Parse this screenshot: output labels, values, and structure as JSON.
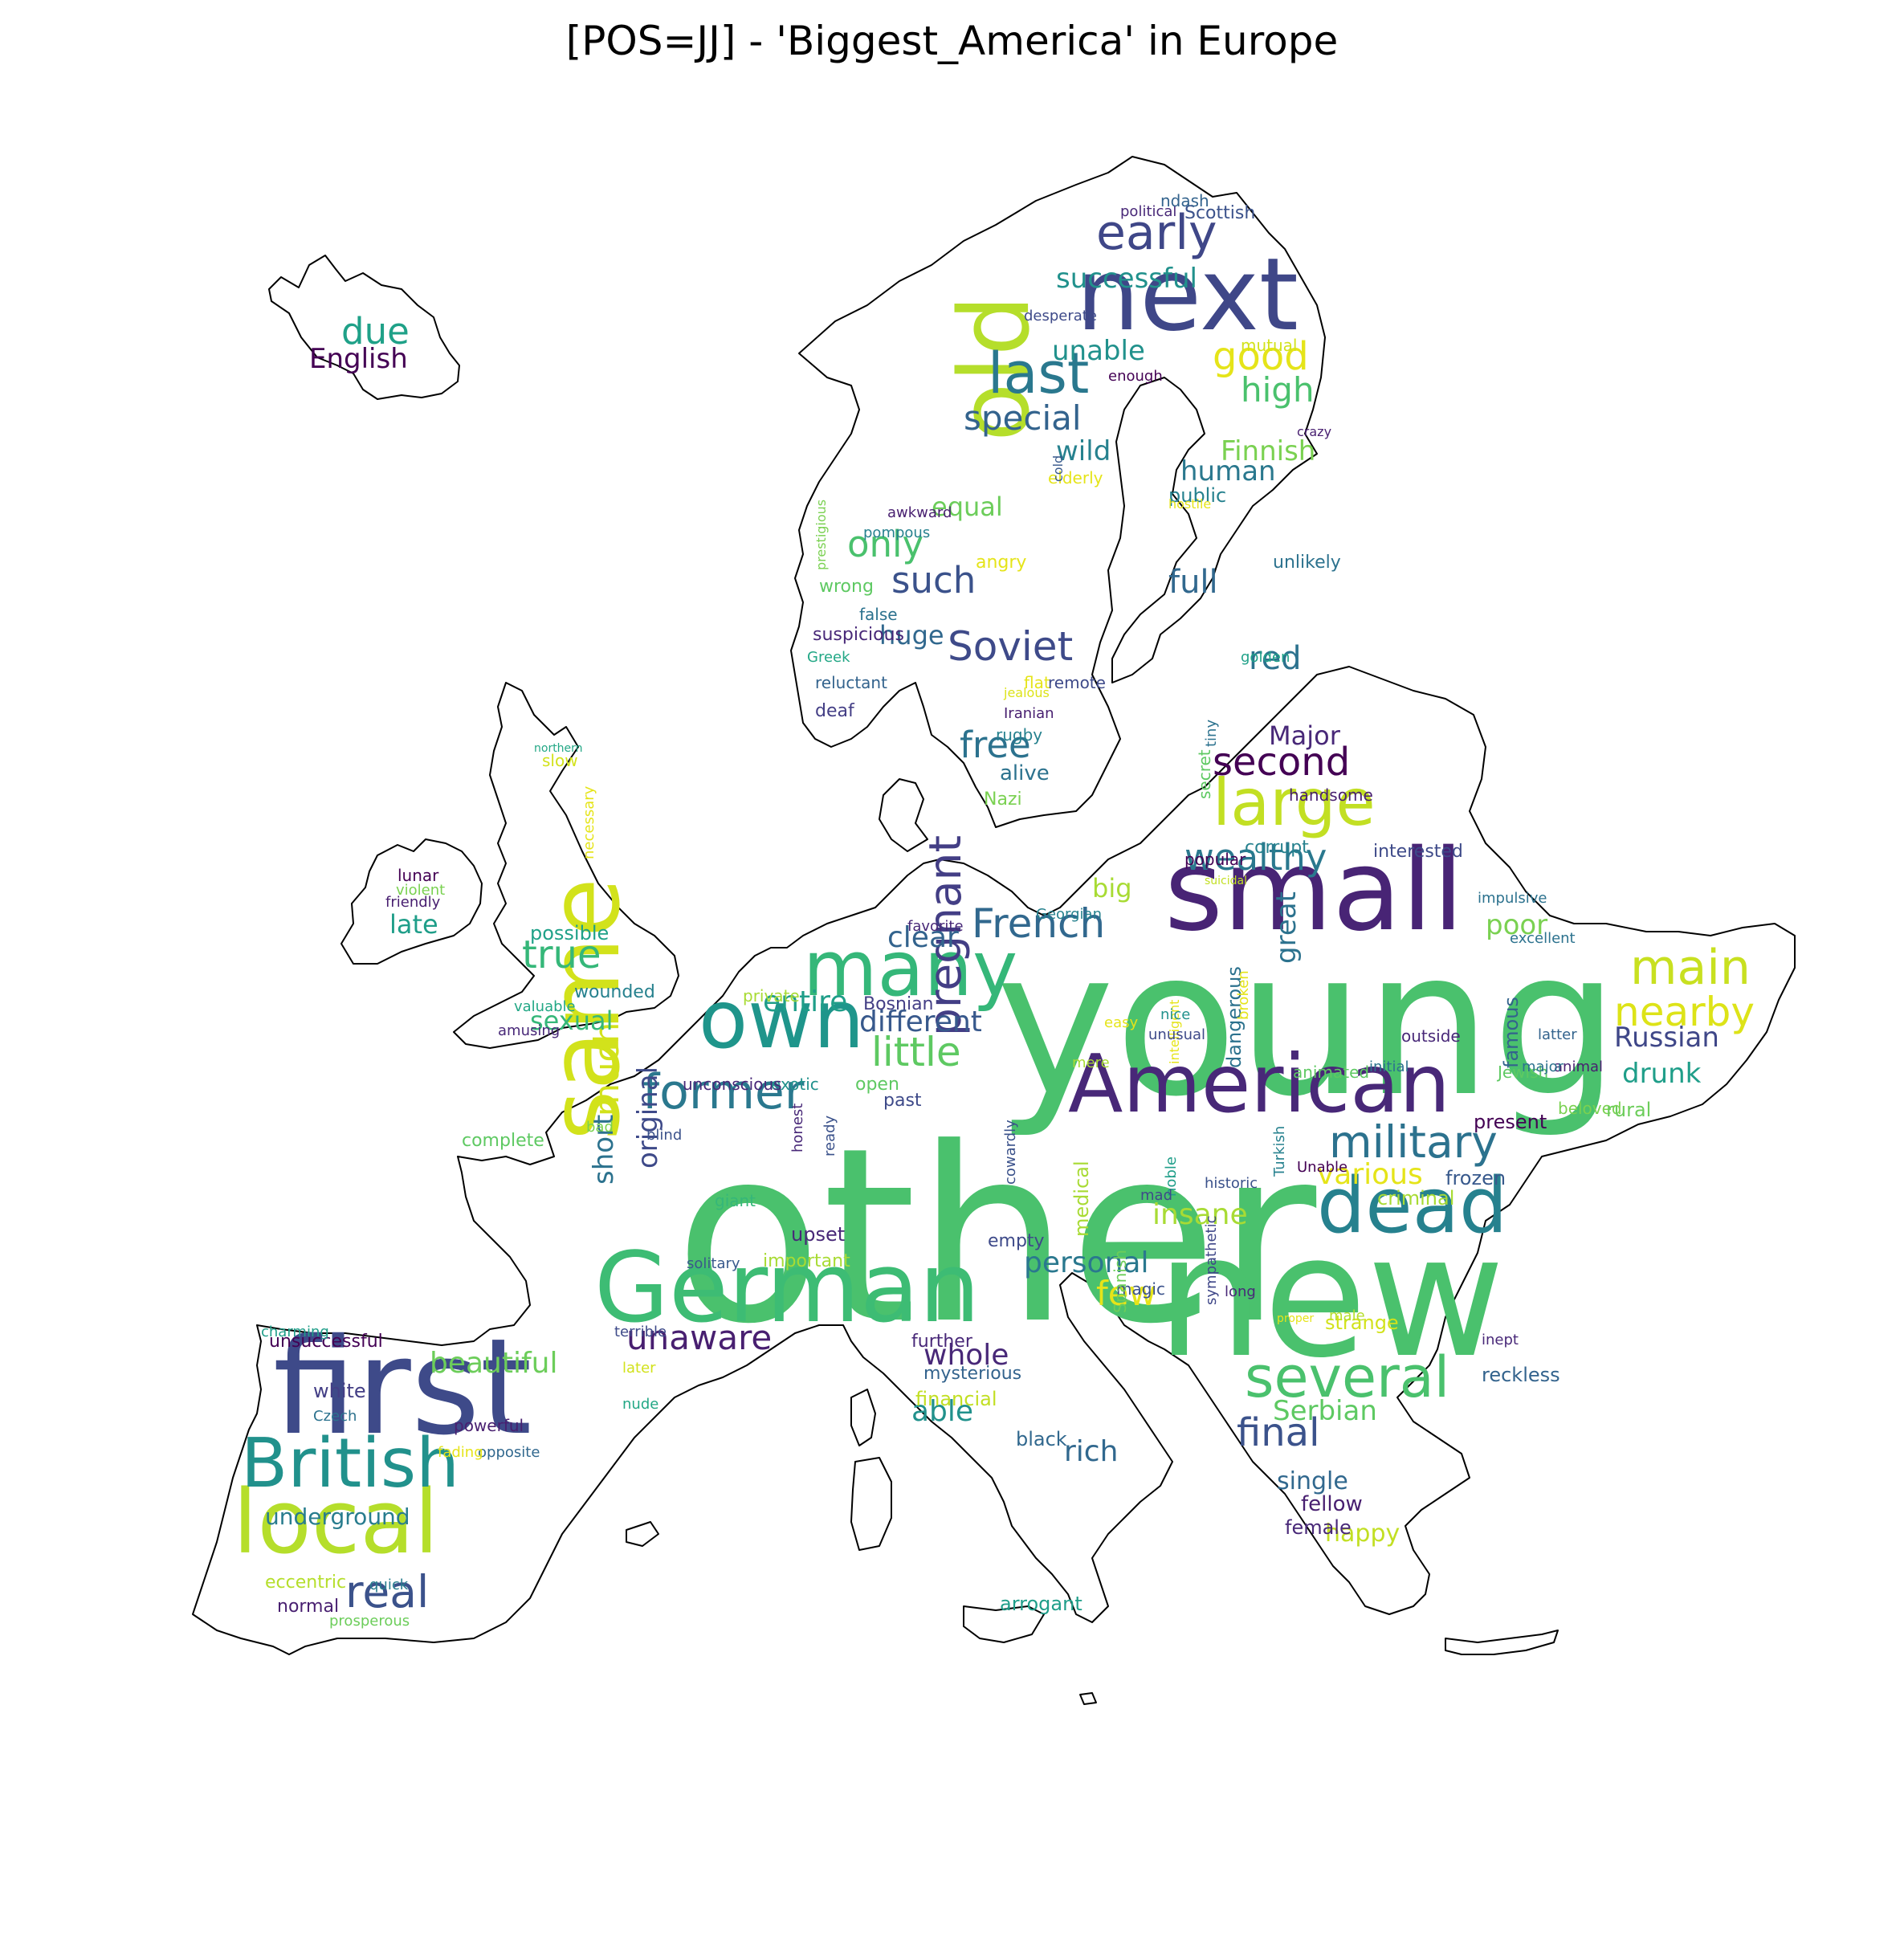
{
  "title": "[POS=JJ] - 'Biggest_America' in Europe",
  "words": [
    {
      "text": "other",
      "size": 300,
      "color": "#4ac16d"
    },
    {
      "text": "young",
      "size": 250,
      "color": "#4ac16d"
    },
    {
      "text": "new",
      "size": 210,
      "color": "#4ac16d"
    },
    {
      "text": "first",
      "size": 165,
      "color": "#3e4a89"
    },
    {
      "text": "small",
      "size": 140,
      "color": "#482475"
    },
    {
      "text": "next",
      "size": 125,
      "color": "#3f4788"
    },
    {
      "text": "same",
      "size": 120,
      "color": "#d2e21b",
      "rotate": true
    },
    {
      "text": "German",
      "size": 120,
      "color": "#3dbc74"
    },
    {
      "text": "old",
      "size": 120,
      "color": "#b5de2b",
      "rotate": true
    },
    {
      "text": "local",
      "size": 110,
      "color": "#b5de2b"
    },
    {
      "text": "American",
      "size": 100,
      "color": "#482878"
    },
    {
      "text": "dead",
      "size": 95,
      "color": "#26818e"
    },
    {
      "text": "own",
      "size": 100,
      "color": "#1f958b"
    },
    {
      "text": "many",
      "size": 95,
      "color": "#35b779"
    },
    {
      "text": "British",
      "size": 85,
      "color": "#21918c"
    },
    {
      "text": "large",
      "size": 80,
      "color": "#c2df23"
    },
    {
      "text": "several",
      "size": 70,
      "color": "#4ac16d"
    },
    {
      "text": "last",
      "size": 70,
      "color": "#2a788e"
    },
    {
      "text": "main",
      "size": 60,
      "color": "#c8e020"
    },
    {
      "text": "early",
      "size": 60,
      "color": "#3f4788"
    },
    {
      "text": "former",
      "size": 60,
      "color": "#2a788e"
    },
    {
      "text": "real",
      "size": 55,
      "color": "#3b528b"
    },
    {
      "text": "pregnant",
      "size": 55,
      "color": "#433e85",
      "rotate": true
    },
    {
      "text": "military",
      "size": 55,
      "color": "#2c728e"
    },
    {
      "text": "nearby",
      "size": 50,
      "color": "#dde318"
    },
    {
      "text": "little",
      "size": 50,
      "color": "#5ec962"
    },
    {
      "text": "Soviet",
      "size": 50,
      "color": "#3e4a89"
    },
    {
      "text": "French",
      "size": 50,
      "color": "#31688e"
    },
    {
      "text": "true",
      "size": 48,
      "color": "#35b779"
    },
    {
      "text": "good",
      "size": 48,
      "color": "#e5e419"
    },
    {
      "text": "second",
      "size": 48,
      "color": "#440154"
    },
    {
      "text": "final",
      "size": 48,
      "color": "#3b528b"
    },
    {
      "text": "such",
      "size": 45,
      "color": "#3b528b"
    },
    {
      "text": "free",
      "size": 45,
      "color": "#2c728e"
    },
    {
      "text": "only",
      "size": 45,
      "color": "#4ac16d"
    },
    {
      "text": "wealthy",
      "size": 45,
      "color": "#2a788e"
    },
    {
      "text": "unaware",
      "size": 42,
      "color": "#481f70"
    },
    {
      "text": "due",
      "size": 45,
      "color": "#1fa188"
    },
    {
      "text": "special",
      "size": 42,
      "color": "#33638d"
    },
    {
      "text": "high",
      "size": 42,
      "color": "#4ac16d"
    },
    {
      "text": "few",
      "size": 42,
      "color": "#e5e419"
    },
    {
      "text": "much",
      "size": 42,
      "color": "#d2e21b",
      "rotate": true
    },
    {
      "text": "full",
      "size": 40,
      "color": "#31688e"
    },
    {
      "text": "red",
      "size": 40,
      "color": "#2c728e"
    },
    {
      "text": "various",
      "size": 36,
      "color": "#e5e419"
    },
    {
      "text": "insane",
      "size": 36,
      "color": "#a8db34"
    },
    {
      "text": "personal",
      "size": 36,
      "color": "#2a788e"
    },
    {
      "text": "different",
      "size": 36,
      "color": "#38598c"
    },
    {
      "text": "entire",
      "size": 36,
      "color": "#1f9e89"
    },
    {
      "text": "beautiful",
      "size": 36,
      "color": "#6ccd5a"
    },
    {
      "text": "whole",
      "size": 36,
      "color": "#482878"
    },
    {
      "text": "able",
      "size": 36,
      "color": "#21918c"
    },
    {
      "text": "rich",
      "size": 36,
      "color": "#31688e"
    },
    {
      "text": "clear",
      "size": 36,
      "color": "#33638d"
    },
    {
      "text": "Serbian",
      "size": 34,
      "color": "#5ec962"
    },
    {
      "text": "English",
      "size": 34,
      "color": "#440154"
    },
    {
      "text": "unable",
      "size": 34,
      "color": "#21918c"
    },
    {
      "text": "short",
      "size": 34,
      "color": "#2c728e",
      "rotate": true
    },
    {
      "text": "original",
      "size": 34,
      "color": "#3e4a89",
      "rotate": true
    },
    {
      "text": "great",
      "size": 34,
      "color": "#2c728e",
      "rotate": true
    },
    {
      "text": "Russian",
      "size": 34,
      "color": "#3f4788"
    },
    {
      "text": "drunk",
      "size": 34,
      "color": "#1f9e89"
    },
    {
      "text": "poor",
      "size": 34,
      "color": "#7ad151"
    },
    {
      "text": "successful",
      "size": 34,
      "color": "#21918c"
    },
    {
      "text": "Finnish",
      "size": 34,
      "color": "#7ad151"
    },
    {
      "text": "wild",
      "size": 34,
      "color": "#26818e"
    },
    {
      "text": "human",
      "size": 34,
      "color": "#2a788e"
    },
    {
      "text": "equal",
      "size": 32,
      "color": "#6ccd5a"
    },
    {
      "text": "huge",
      "size": 32,
      "color": "#31688e"
    },
    {
      "text": "big",
      "size": 32,
      "color": "#a8db34"
    },
    {
      "text": "Major",
      "size": 32,
      "color": "#482878"
    },
    {
      "text": "sexual",
      "size": 32,
      "color": "#35b779"
    },
    {
      "text": "late",
      "size": 32,
      "color": "#1f9e89"
    },
    {
      "text": "single",
      "size": 30,
      "color": "#31688e"
    },
    {
      "text": "happy",
      "size": 30,
      "color": "#c2df23"
    },
    {
      "text": "underground",
      "size": 28,
      "color": "#287c8e"
    },
    {
      "text": "unsuccessful",
      "size": 22,
      "color": "#440154"
    },
    {
      "text": "public",
      "size": 24,
      "color": "#26818e"
    },
    {
      "text": "alive",
      "size": 26,
      "color": "#2c728e"
    },
    {
      "text": "fellow",
      "size": 26,
      "color": "#481f70"
    },
    {
      "text": "female",
      "size": 24,
      "color": "#482878"
    },
    {
      "text": "dangerous",
      "size": 24,
      "color": "#2c728e",
      "rotate": true
    },
    {
      "text": "famous",
      "size": 24,
      "color": "#33638d",
      "rotate": true
    },
    {
      "text": "reckless",
      "size": 24,
      "color": "#33638d"
    },
    {
      "text": "strange",
      "size": 24,
      "color": "#d2e21b"
    },
    {
      "text": "arrogant",
      "size": 24,
      "color": "#1f9e89"
    },
    {
      "text": "black",
      "size": 24,
      "color": "#31688e"
    },
    {
      "text": "financial",
      "size": 24,
      "color": "#c2df23"
    },
    {
      "text": "mysterious",
      "size": 22,
      "color": "#33638d"
    },
    {
      "text": "further",
      "size": 22,
      "color": "#482878"
    },
    {
      "text": "possible",
      "size": 24,
      "color": "#1fa188"
    },
    {
      "text": "wounded",
      "size": 22,
      "color": "#26818e"
    },
    {
      "text": "white",
      "size": 24,
      "color": "#433e85"
    },
    {
      "text": "complete",
      "size": 22,
      "color": "#5ec962"
    },
    {
      "text": "present",
      "size": 24,
      "color": "#440154"
    },
    {
      "text": "criminal",
      "size": 24,
      "color": "#a8db34"
    },
    {
      "text": "frozen",
      "size": 24,
      "color": "#38598c"
    },
    {
      "text": "medical",
      "size": 24,
      "color": "#a8db34",
      "rotate": true
    },
    {
      "text": "upset",
      "size": 24,
      "color": "#482878"
    },
    {
      "text": "important",
      "size": 22,
      "color": "#a8db34"
    },
    {
      "text": "empty",
      "size": 22,
      "color": "#3e4a89"
    },
    {
      "text": "cowardly",
      "size": 18,
      "color": "#3b528b",
      "rotate": true
    },
    {
      "text": "past",
      "size": 22,
      "color": "#3e4a89"
    },
    {
      "text": "open",
      "size": 22,
      "color": "#5ec962"
    },
    {
      "text": "exotic",
      "size": 20,
      "color": "#21918c"
    },
    {
      "text": "unconscious",
      "size": 20,
      "color": "#482878"
    },
    {
      "text": "Bosnian",
      "size": 22,
      "color": "#433e85"
    },
    {
      "text": "private",
      "size": 20,
      "color": "#a8db34"
    },
    {
      "text": "favorite",
      "size": 18,
      "color": "#482878"
    },
    {
      "text": "Georgian",
      "size": 18,
      "color": "#26818e"
    },
    {
      "text": "suicidal",
      "size": 14,
      "color": "#c2df23"
    },
    {
      "text": "popular",
      "size": 20,
      "color": "#440154"
    },
    {
      "text": "corrupt",
      "size": 22,
      "color": "#26818e"
    },
    {
      "text": "interested",
      "size": 22,
      "color": "#3e4a89"
    },
    {
      "text": "handsome",
      "size": 20,
      "color": "#481f70"
    },
    {
      "text": "tiny",
      "size": 18,
      "color": "#2c728e",
      "rotate": true
    },
    {
      "text": "secret",
      "size": 20,
      "color": "#5ec962",
      "rotate": true
    },
    {
      "text": "impulsive",
      "size": 18,
      "color": "#2c728e"
    },
    {
      "text": "excellent",
      "size": 18,
      "color": "#2c728e"
    },
    {
      "text": "latter",
      "size": 18,
      "color": "#33638d"
    },
    {
      "text": "animal",
      "size": 18,
      "color": "#481f70"
    },
    {
      "text": "Jewish",
      "size": 20,
      "color": "#5ec962"
    },
    {
      "text": "beloved",
      "size": 20,
      "color": "#7ad151"
    },
    {
      "text": "rural",
      "size": 24,
      "color": "#6ccd5a"
    },
    {
      "text": "initial",
      "size": 18,
      "color": "#2c728e"
    },
    {
      "text": "major",
      "size": 18,
      "color": "#2c728e"
    },
    {
      "text": "outside",
      "size": 20,
      "color": "#482878"
    },
    {
      "text": "animated",
      "size": 20,
      "color": "#5ec962"
    },
    {
      "text": "intelligent",
      "size": 16,
      "color": "#e5e419",
      "rotate": true
    },
    {
      "text": "broken",
      "size": 18,
      "color": "#e5e419",
      "rotate": true
    },
    {
      "text": "easy",
      "size": 18,
      "color": "#e5e419"
    },
    {
      "text": "nice",
      "size": 18,
      "color": "#21918c"
    },
    {
      "text": "unusual",
      "size": 18,
      "color": "#3e4a89"
    },
    {
      "text": "mere",
      "size": 18,
      "color": "#a8db34"
    },
    {
      "text": "historic",
      "size": 18,
      "color": "#3b528b"
    },
    {
      "text": "noble",
      "size": 18,
      "color": "#1f9e89",
      "rotate": true
    },
    {
      "text": "Turkish",
      "size": 18,
      "color": "#26818e",
      "rotate": true
    },
    {
      "text": "Unable",
      "size": 18,
      "color": "#440154"
    },
    {
      "text": "magic",
      "size": 20,
      "color": "#3b528b"
    },
    {
      "text": "Spanish",
      "size": 20,
      "color": "#6ccd5a",
      "rotate": true
    },
    {
      "text": "sympathetic",
      "size": 18,
      "color": "#3f4788",
      "rotate": true
    },
    {
      "text": "long",
      "size": 18,
      "color": "#482878"
    },
    {
      "text": "proper",
      "size": 14,
      "color": "#e5e419"
    },
    {
      "text": "inept",
      "size": 18,
      "color": "#482878"
    },
    {
      "text": "male",
      "size": 18,
      "color": "#b5de2b"
    },
    {
      "text": "mad",
      "size": 18,
      "color": "#3e4a89"
    },
    {
      "text": "solitary",
      "size": 18,
      "color": "#38598c"
    },
    {
      "text": "giant",
      "size": 20,
      "color": "#35b779"
    },
    {
      "text": "honest",
      "size": 18,
      "color": "#482878",
      "rotate": true
    },
    {
      "text": "ready",
      "size": 18,
      "color": "#3b528b",
      "rotate": true
    },
    {
      "text": "blind",
      "size": 18,
      "color": "#3b528b"
    },
    {
      "text": "bad",
      "size": 18,
      "color": "#7ad151"
    },
    {
      "text": "terrible",
      "size": 18,
      "color": "#3e4a89"
    },
    {
      "text": "later",
      "size": 18,
      "color": "#d2e21b"
    },
    {
      "text": "nude",
      "size": 18,
      "color": "#22a785"
    },
    {
      "text": "powerful",
      "size": 20,
      "color": "#481f70"
    },
    {
      "text": "opposite",
      "size": 18,
      "color": "#31688e"
    },
    {
      "text": "fading",
      "size": 18,
      "color": "#e5e419"
    },
    {
      "text": "Czech",
      "size": 18,
      "color": "#2c728e"
    },
    {
      "text": "charming",
      "size": 18,
      "color": "#1f9e89"
    },
    {
      "text": "eccentric",
      "size": 22,
      "color": "#b5de2b"
    },
    {
      "text": "quick",
      "size": 18,
      "color": "#287c8e"
    },
    {
      "text": "normal",
      "size": 22,
      "color": "#481f70"
    },
    {
      "text": "prosperous",
      "size": 18,
      "color": "#6ccd5a"
    },
    {
      "text": "amusing",
      "size": 18,
      "color": "#482878"
    },
    {
      "text": "valuable",
      "size": 18,
      "color": "#22a785"
    },
    {
      "text": "lunar",
      "size": 20,
      "color": "#440154"
    },
    {
      "text": "violent",
      "size": 18,
      "color": "#7ad151"
    },
    {
      "text": "friendly",
      "size": 18,
      "color": "#481f70"
    },
    {
      "text": "necessary",
      "size": 18,
      "color": "#e5e419",
      "rotate": true
    },
    {
      "text": "northern",
      "size": 14,
      "color": "#22a785"
    },
    {
      "text": "slow",
      "size": 20,
      "color": "#d2e21b"
    },
    {
      "text": "Nazi",
      "size": 22,
      "color": "#7ad151"
    },
    {
      "text": "rugby",
      "size": 20,
      "color": "#26818e"
    },
    {
      "text": "Iranian",
      "size": 18,
      "color": "#481f70"
    },
    {
      "text": "jealous",
      "size": 16,
      "color": "#dde318"
    },
    {
      "text": "flat",
      "size": 20,
      "color": "#e5e419"
    },
    {
      "text": "remote",
      "size": 20,
      "color": "#3e4a89"
    },
    {
      "text": "golden",
      "size": 18,
      "color": "#1fa188"
    },
    {
      "text": "deaf",
      "size": 22,
      "color": "#433e85"
    },
    {
      "text": "reluctant",
      "size": 20,
      "color": "#33638d"
    },
    {
      "text": "Greek",
      "size": 18,
      "color": "#22a785"
    },
    {
      "text": "suspicious",
      "size": 22,
      "color": "#482878"
    },
    {
      "text": "wrong",
      "size": 22,
      "color": "#5ec962"
    },
    {
      "text": "false",
      "size": 20,
      "color": "#2c728e"
    },
    {
      "text": "prestigious",
      "size": 16,
      "color": "#7ad151",
      "rotate": true
    },
    {
      "text": "pompous",
      "size": 18,
      "color": "#26818e"
    },
    {
      "text": "angry",
      "size": 22,
      "color": "#e5e419"
    },
    {
      "text": "awkward",
      "size": 18,
      "color": "#481f70"
    },
    {
      "text": "elderly",
      "size": 20,
      "color": "#e5e419"
    },
    {
      "text": "cold",
      "size": 16,
      "color": "#38598c",
      "rotate": true
    },
    {
      "text": "hostile",
      "size": 16,
      "color": "#e5e419"
    },
    {
      "text": "unlikely",
      "size": 22,
      "color": "#2c728e"
    },
    {
      "text": "crazy",
      "size": 16,
      "color": "#481f70"
    },
    {
      "text": "enough",
      "size": 18,
      "color": "#440154"
    },
    {
      "text": "mutual",
      "size": 20,
      "color": "#d2e21b"
    },
    {
      "text": "desperate",
      "size": 18,
      "color": "#3e4a89"
    },
    {
      "text": "political",
      "size": 18,
      "color": "#482878"
    },
    {
      "text": "Scottish",
      "size": 22,
      "color": "#3b528b"
    },
    {
      "text": "ndash",
      "size": 20,
      "color": "#33638d"
    }
  ]
}
